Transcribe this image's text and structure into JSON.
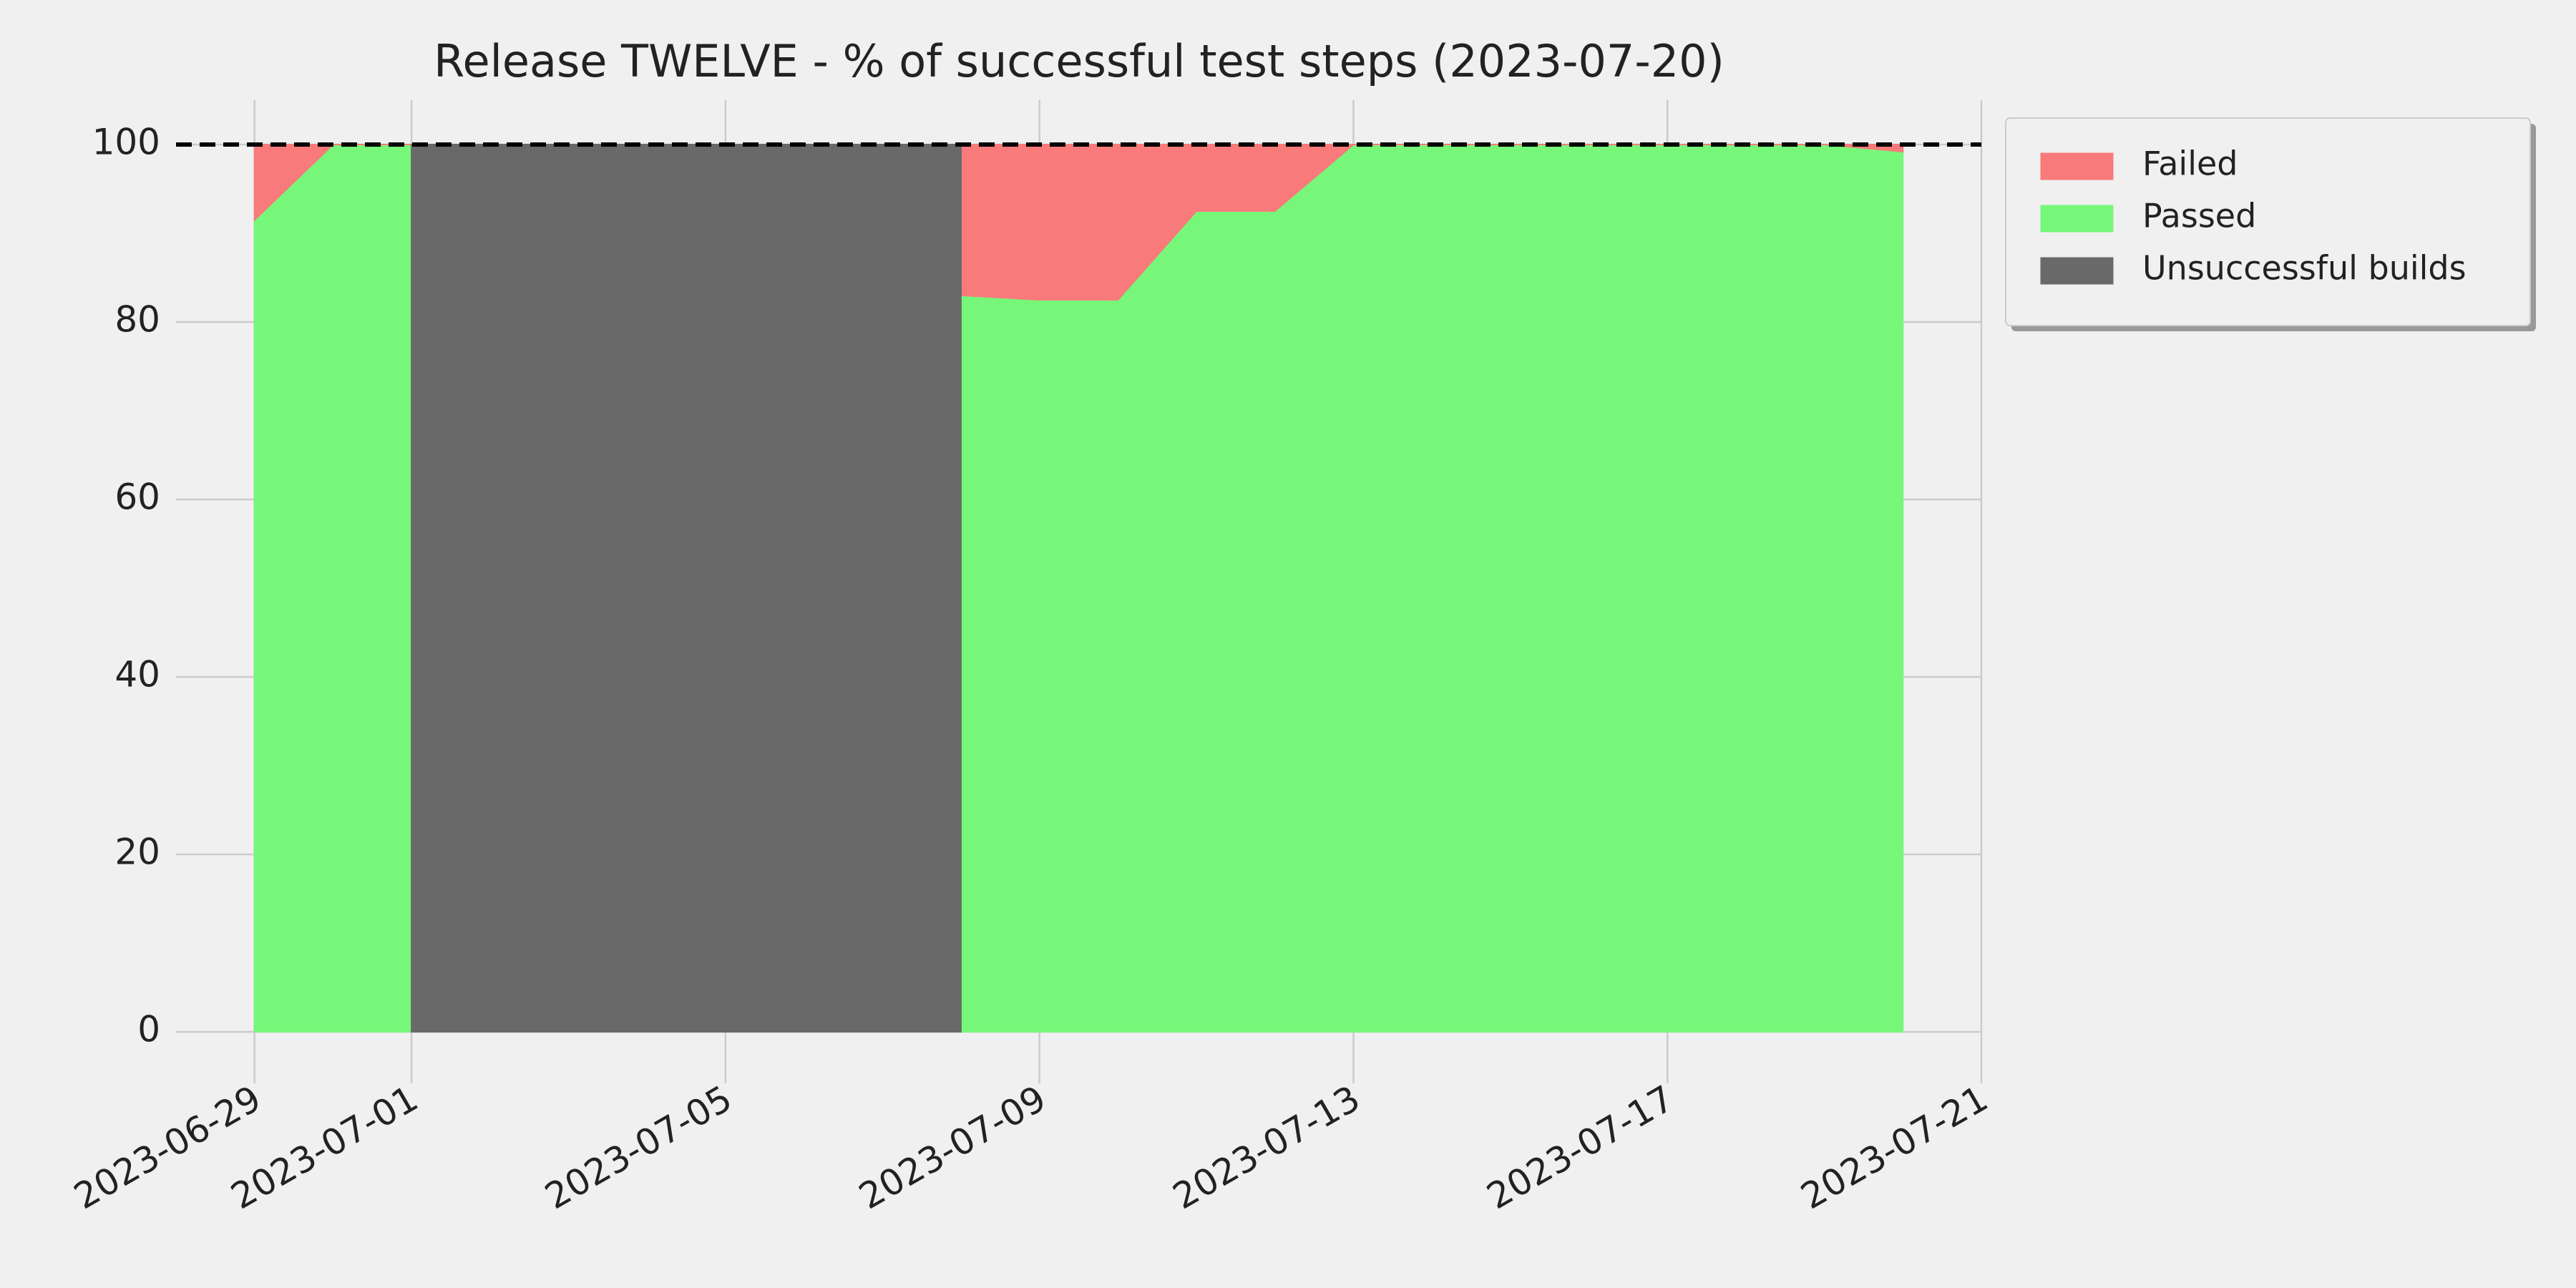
{
  "chart_data": {
    "type": "stacked-area",
    "title": "Release TWELVE - % of successful test steps (2023-07-20)",
    "x": [
      "2023-06-29",
      "2023-06-30",
      "2023-07-01",
      "2023-07-02",
      "2023-07-03",
      "2023-07-04",
      "2023-07-05",
      "2023-07-06",
      "2023-07-07",
      "2023-07-08",
      "2023-07-09",
      "2023-07-10",
      "2023-07-11",
      "2023-07-12",
      "2023-07-13",
      "2023-07-14",
      "2023-07-15",
      "2023-07-16",
      "2023-07-17",
      "2023-07-18",
      "2023-07-19",
      "2023-07-20"
    ],
    "series": [
      {
        "name": "Passed",
        "color": "#77f77a",
        "stack": true,
        "values": [
          91.5,
          100,
          100,
          null,
          null,
          null,
          null,
          null,
          null,
          83,
          82.5,
          82.5,
          92.5,
          92.5,
          100,
          100,
          100,
          100,
          100,
          100,
          100,
          99.2
        ]
      },
      {
        "name": "Failed",
        "color": "#f87a7a",
        "stack": true,
        "values": [
          8.5,
          0,
          0,
          null,
          null,
          null,
          null,
          null,
          null,
          17,
          17.5,
          17.5,
          7.5,
          7.5,
          0,
          0,
          0,
          0,
          0,
          0,
          0,
          0.8
        ]
      },
      {
        "name": "Unsuccessful builds",
        "color": "#696969",
        "stack": false,
        "values": [
          null,
          null,
          100,
          100,
          100,
          100,
          100,
          100,
          100,
          100,
          null,
          null,
          null,
          null,
          null,
          null,
          null,
          null,
          null,
          null,
          null,
          null
        ]
      }
    ],
    "legend_order": [
      "Failed",
      "Passed",
      "Unsuccessful builds"
    ],
    "legend": "outside upper right",
    "hline": 100,
    "xlim": [
      "2023-06-28",
      "2023-07-21"
    ],
    "xticks": [
      "2023-06-29",
      "2023-07-01",
      "2023-07-05",
      "2023-07-09",
      "2023-07-13",
      "2023-07-17",
      "2023-07-21"
    ],
    "ylim": [
      -5,
      105
    ],
    "yticks": [
      0,
      20,
      40,
      60,
      80,
      100
    ],
    "grid": true
  }
}
